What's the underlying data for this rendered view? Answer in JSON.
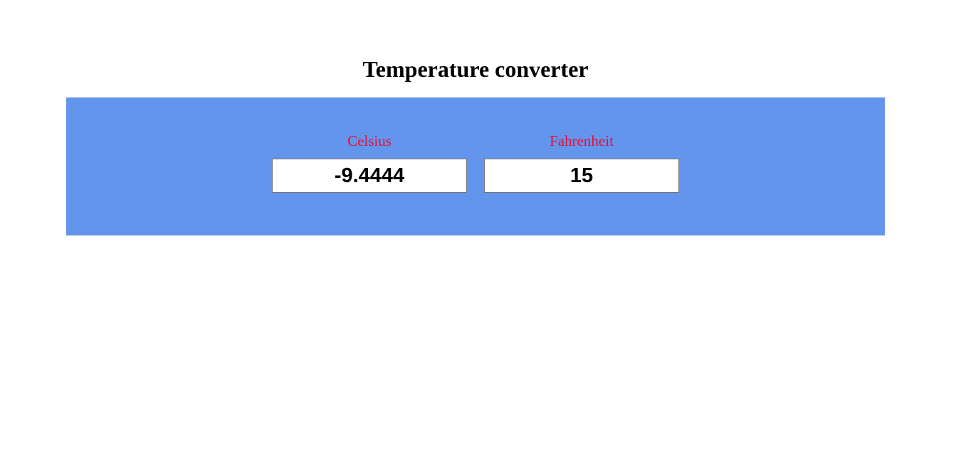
{
  "page": {
    "title": "Temperature converter"
  },
  "converter": {
    "celsius": {
      "label": "Celsius",
      "value": "-9.4444"
    },
    "fahrenheit": {
      "label": "Fahrenheit",
      "value": "15"
    }
  },
  "colors": {
    "panel_background": "#6495ed",
    "label_text": "#dc143c",
    "page_background": "#ffffff"
  }
}
